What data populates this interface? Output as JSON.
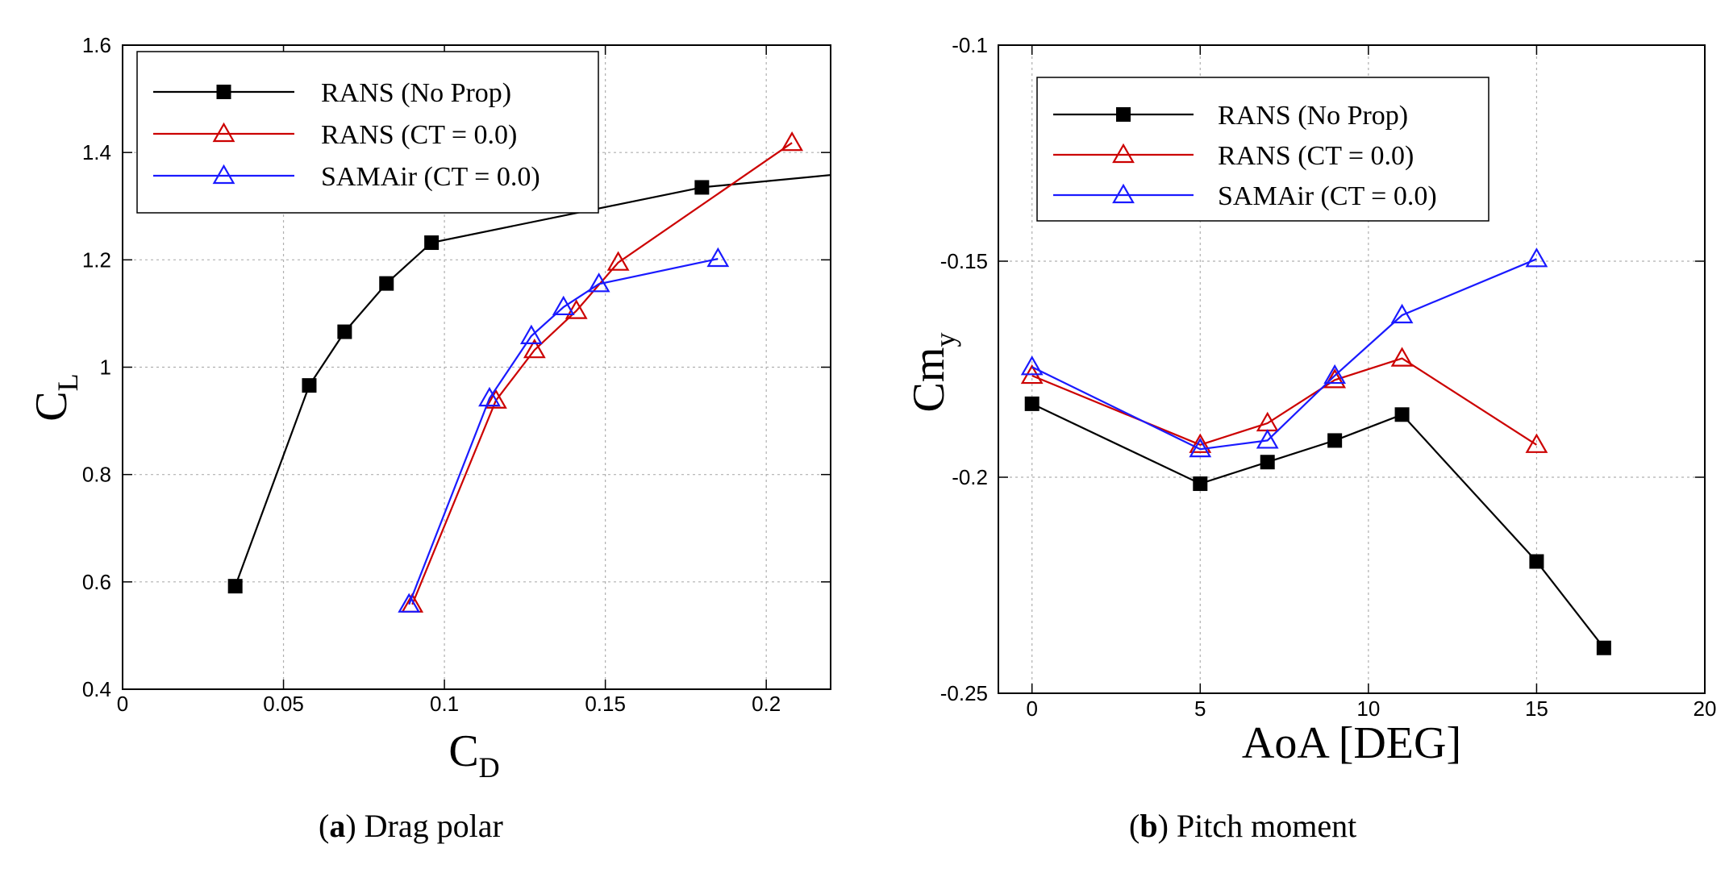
{
  "colors": {
    "rans_no_prop": "#000000",
    "rans_ct": "#cc0000",
    "samair_ct": "#1a1aff",
    "grid": "#b0b0b0"
  },
  "chart_data": [
    {
      "id": "a",
      "type": "line",
      "caption": {
        "letter": "a",
        "text": "Drag polar"
      },
      "xlabel": {
        "main": "C",
        "sub": "D"
      },
      "ylabel": {
        "main": "C",
        "sub": "L"
      },
      "xlim": [
        0,
        0.22
      ],
      "ylim": [
        0.4,
        1.6
      ],
      "xticks": [
        0,
        0.05,
        0.1,
        0.15,
        0.2
      ],
      "xtick_labels": [
        "0",
        "0.05",
        "0.1",
        "0.15",
        "0.2"
      ],
      "yticks": [
        0.4,
        0.6,
        0.8,
        1.0,
        1.2,
        1.4,
        1.6
      ],
      "ytick_labels": [
        "0.4",
        "0.6",
        "0.8",
        "1",
        "1.2",
        "1.4",
        "1.6"
      ],
      "grid": true,
      "legend": "top-left",
      "series": [
        {
          "name": "RANS (No Prop)",
          "color_key": "rans_no_prop",
          "marker": "square-filled",
          "points": [
            [
              0.035,
              0.592
            ],
            [
              0.058,
              0.966
            ],
            [
              0.069,
              1.066
            ],
            [
              0.082,
              1.156
            ],
            [
              0.096,
              1.232
            ],
            [
              0.18,
              1.335
            ]
          ],
          "extension": [
            [
              0.18,
              1.335
            ],
            [
              0.22,
              1.358
            ]
          ]
        },
        {
          "name": "RANS (CT = 0.0)",
          "color_key": "rans_ct",
          "marker": "triangle-open",
          "points": [
            [
              0.09,
              0.558
            ],
            [
              0.116,
              0.938
            ],
            [
              0.128,
              1.032
            ],
            [
              0.141,
              1.105
            ],
            [
              0.154,
              1.195
            ],
            [
              0.208,
              1.418
            ]
          ]
        },
        {
          "name": "SAMAir (CT = 0.0)",
          "color_key": "samair_ct",
          "marker": "triangle-open",
          "points": [
            [
              0.089,
              0.558
            ],
            [
              0.114,
              0.942
            ],
            [
              0.127,
              1.058
            ],
            [
              0.137,
              1.112
            ],
            [
              0.148,
              1.155
            ],
            [
              0.185,
              1.202
            ]
          ]
        }
      ]
    },
    {
      "id": "b",
      "type": "line",
      "caption": {
        "letter": "b",
        "text": "Pitch moment"
      },
      "xlabel": {
        "main": "AoA [DEG]",
        "sub": ""
      },
      "ylabel": {
        "main": "Cm",
        "sub": "y"
      },
      "xlim": [
        -1,
        20
      ],
      "ylim": [
        -0.25,
        -0.1
      ],
      "xticks": [
        0,
        5,
        10,
        15,
        20
      ],
      "xtick_labels": [
        "0",
        "5",
        "10",
        "15",
        "20"
      ],
      "yticks": [
        -0.25,
        -0.2,
        -0.15,
        -0.1
      ],
      "ytick_labels": [
        "-0.25",
        "-0.2",
        "-0.15",
        "-0.1"
      ],
      "grid": true,
      "legend": "top-left",
      "series": [
        {
          "name": "RANS (No Prop)",
          "color_key": "rans_no_prop",
          "marker": "square-filled",
          "points": [
            [
              0,
              -0.183
            ],
            [
              5,
              -0.2015
            ],
            [
              7,
              -0.1965
            ],
            [
              9,
              -0.1915
            ],
            [
              11,
              -0.1855
            ],
            [
              15,
              -0.2195
            ],
            [
              17,
              -0.2395
            ]
          ]
        },
        {
          "name": "RANS (CT = 0.0)",
          "color_key": "rans_ct",
          "marker": "triangle-open",
          "points": [
            [
              0,
              -0.1765
            ],
            [
              5,
              -0.1925
            ],
            [
              7,
              -0.1875
            ],
            [
              9,
              -0.1775
            ],
            [
              11,
              -0.1725
            ],
            [
              15,
              -0.1925
            ]
          ]
        },
        {
          "name": "SAMAir (CT = 0.0)",
          "color_key": "samair_ct",
          "marker": "triangle-open",
          "points": [
            [
              0,
              -0.1745
            ],
            [
              5,
              -0.1935
            ],
            [
              7,
              -0.1915
            ],
            [
              9,
              -0.1765
            ],
            [
              11,
              -0.1625
            ],
            [
              15,
              -0.1495
            ]
          ]
        }
      ]
    }
  ]
}
